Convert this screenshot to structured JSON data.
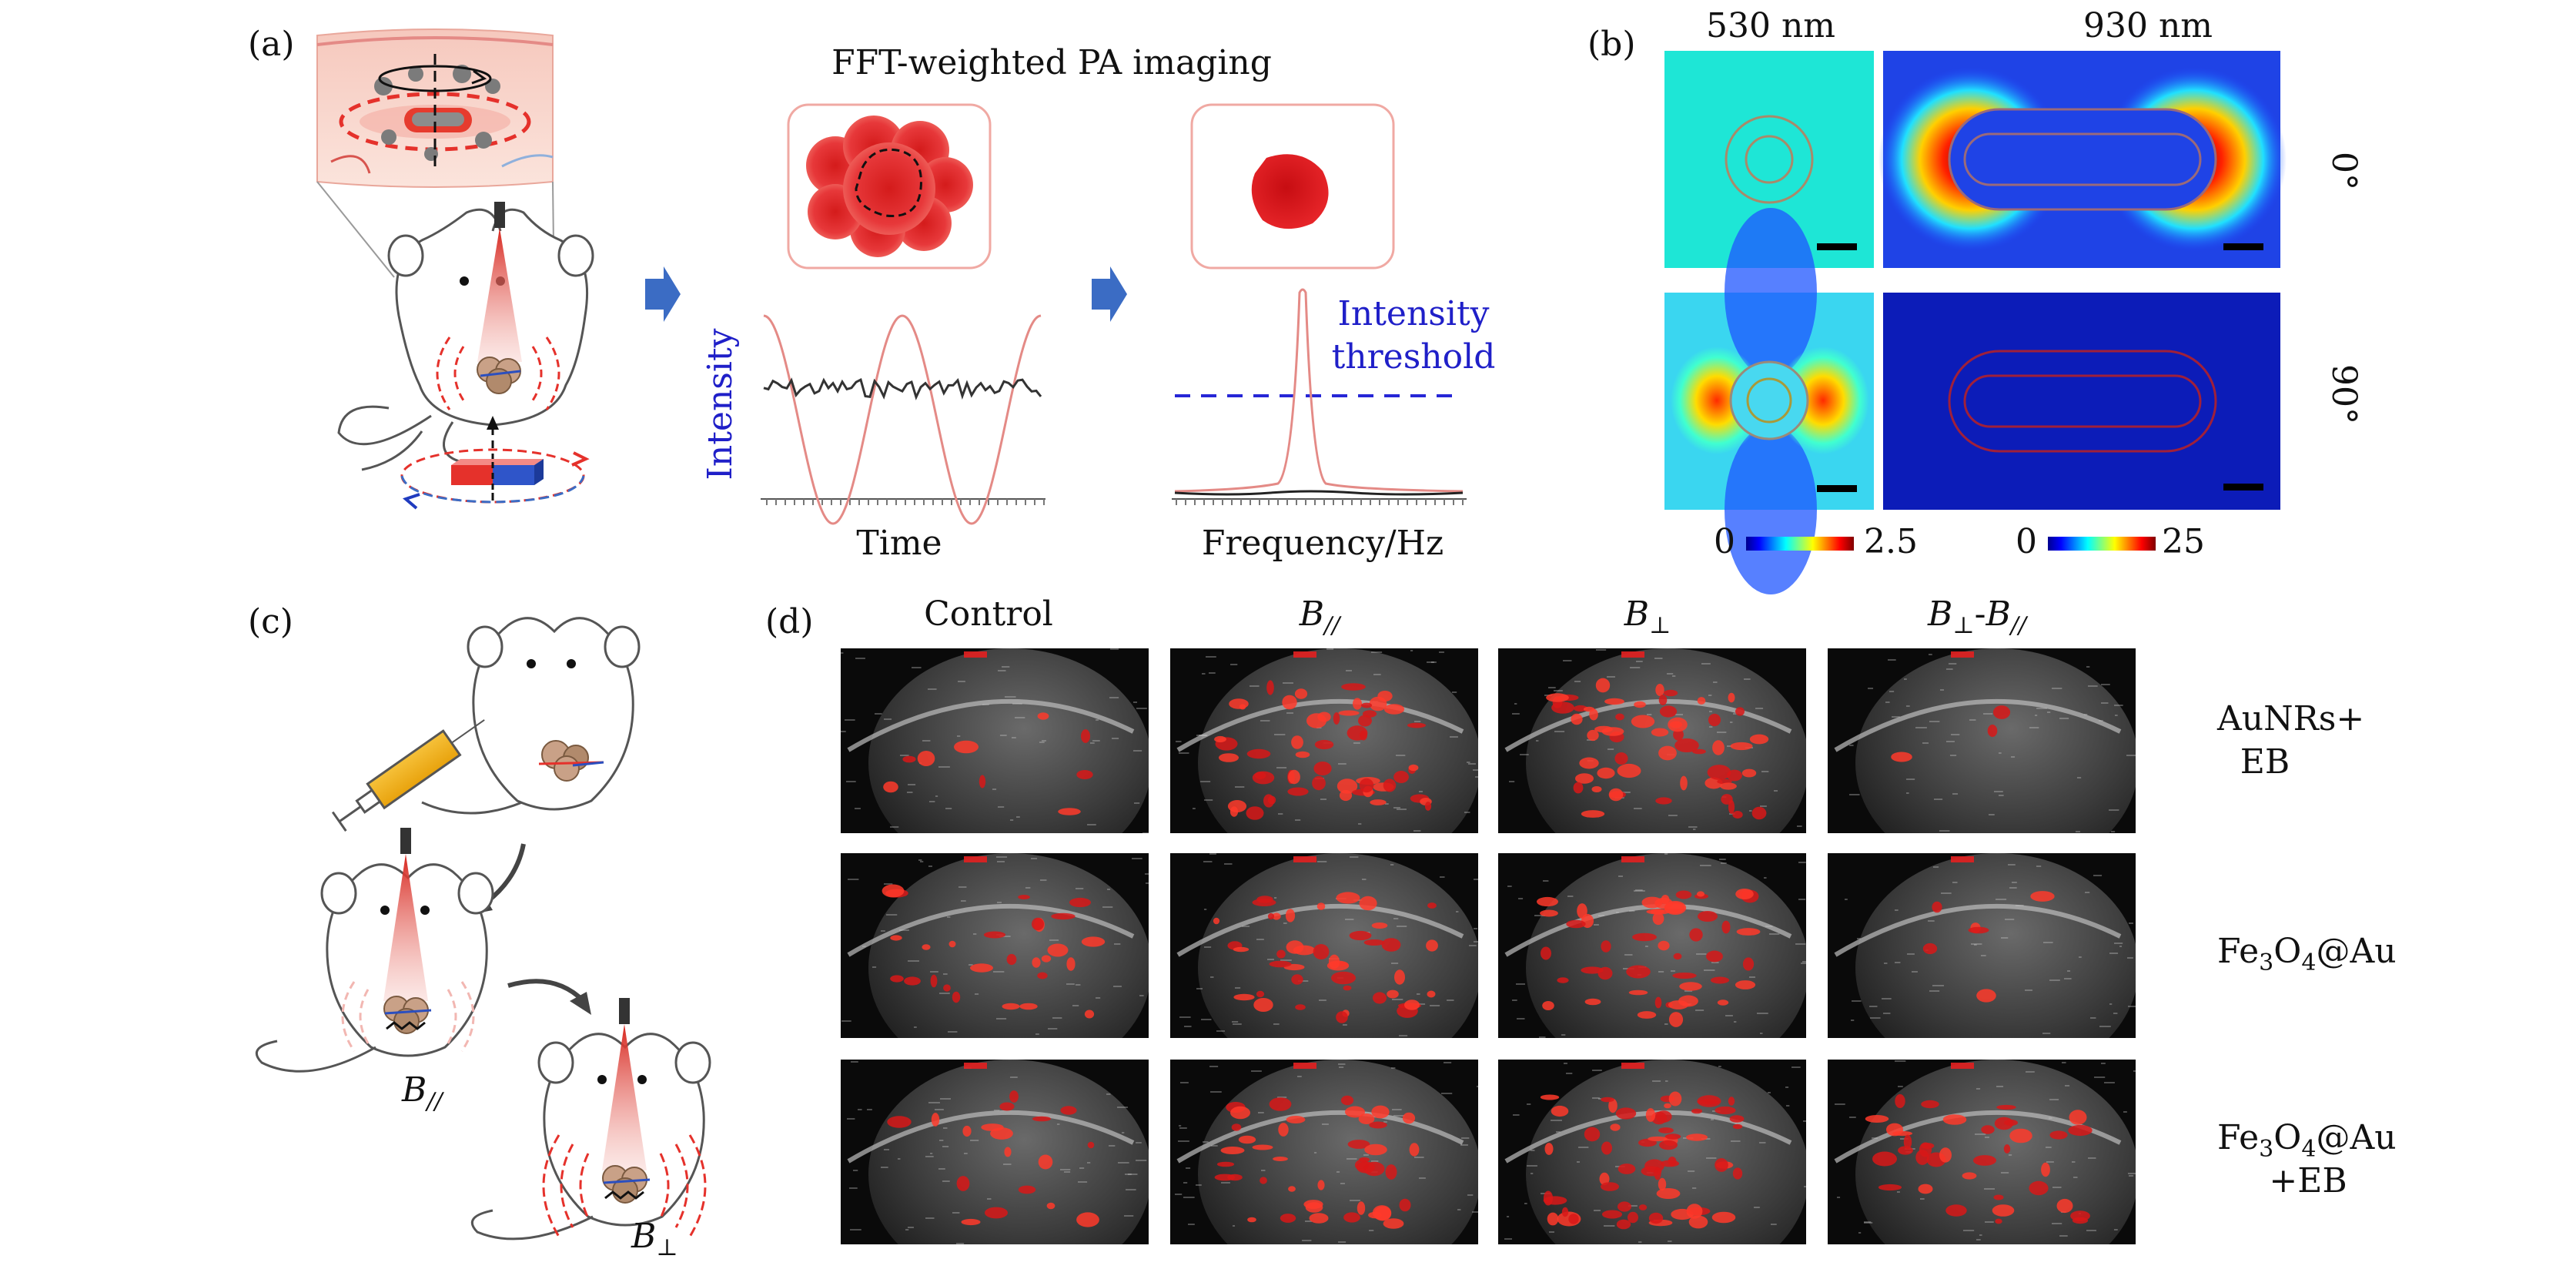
{
  "panels": {
    "a": {
      "label": "(a)",
      "title": "FFT-weighted PA imaging",
      "y_label": "Intensity",
      "time_label": "Time",
      "freq_label": "Frequency/Hz",
      "threshold_line1": "Intensity",
      "threshold_line2": "threshold"
    },
    "b": {
      "label": "(b)",
      "columns": [
        "530 nm",
        "930 nm"
      ],
      "rows": [
        "0°",
        "90°"
      ],
      "colorbars": [
        {
          "min": "0",
          "max": "2.5"
        },
        {
          "min": "0",
          "max": "25"
        }
      ]
    },
    "c": {
      "label": "(c)",
      "b_parallel": "B",
      "b_parallel_sub": "//",
      "b_perp": "B",
      "b_perp_sub": "⊥"
    },
    "d": {
      "label": "(d)",
      "columns": {
        "control": "Control",
        "b_par": "B",
        "b_par_sub": "//",
        "b_perp": "B",
        "b_perp_sub": "⊥",
        "diff_a": "B",
        "diff_a_sub": "⊥",
        "diff_sep": "-",
        "diff_b": "B",
        "diff_b_sub": "//"
      },
      "rows": [
        {
          "line1": "AuNRs+",
          "line2": "EB"
        },
        {
          "pre": "Fe",
          "sub1": "3",
          "mid": "O",
          "sub2": "4",
          "post": "@Au"
        },
        {
          "pre": "Fe",
          "sub1": "3",
          "mid": "O",
          "sub2": "4",
          "post": "@Au",
          "line2": "+EB"
        }
      ]
    }
  },
  "colors": {
    "accent_red": "#e5312b",
    "blue_text": "#1f1fc8",
    "arrow_blue": "#3b6cc4",
    "curve": "#e48a86"
  }
}
